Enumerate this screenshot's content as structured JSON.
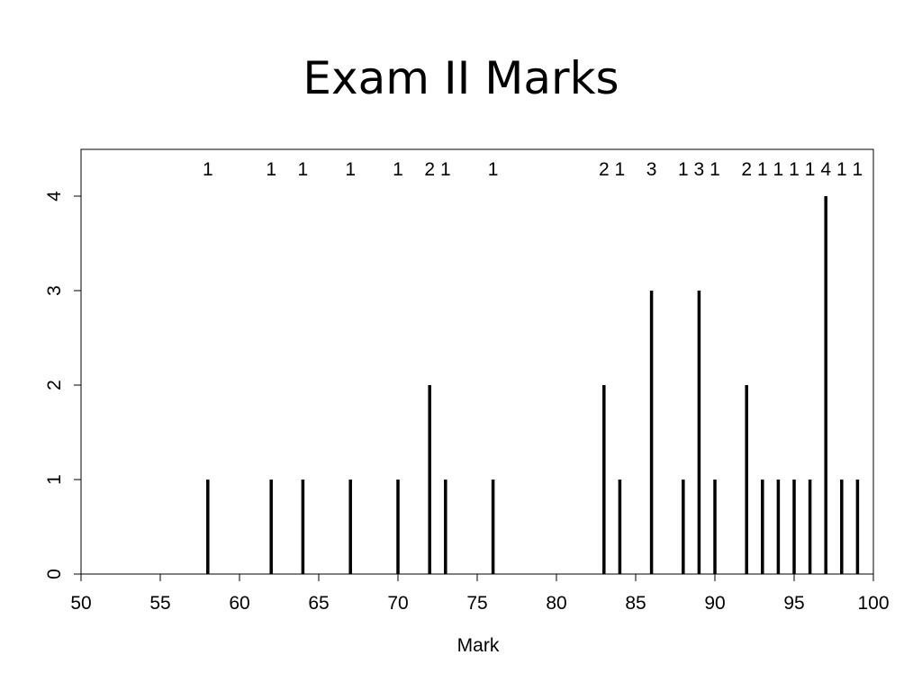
{
  "slide": {
    "title": "Exam II Marks"
  },
  "chart_data": {
    "type": "bar",
    "title": "Exam II Marks",
    "xlabel": "Mark",
    "ylabel": "",
    "xlim": [
      50,
      100
    ],
    "ylim": [
      0,
      4.5
    ],
    "x_ticks": [
      50,
      55,
      60,
      65,
      70,
      75,
      80,
      85,
      90,
      95,
      100
    ],
    "y_ticks": [
      0,
      1,
      2,
      3,
      4
    ],
    "grid": false,
    "legend": "none",
    "bar_color": "#000000",
    "count_labels_above_plot": true,
    "x": [
      58,
      62,
      64,
      67,
      70,
      72,
      73,
      76,
      83,
      84,
      86,
      88,
      89,
      90,
      92,
      93,
      94,
      95,
      96,
      97,
      98,
      99
    ],
    "values": [
      1,
      1,
      1,
      1,
      1,
      2,
      1,
      1,
      2,
      1,
      3,
      1,
      3,
      1,
      2,
      1,
      1,
      1,
      1,
      4,
      1,
      1
    ]
  }
}
